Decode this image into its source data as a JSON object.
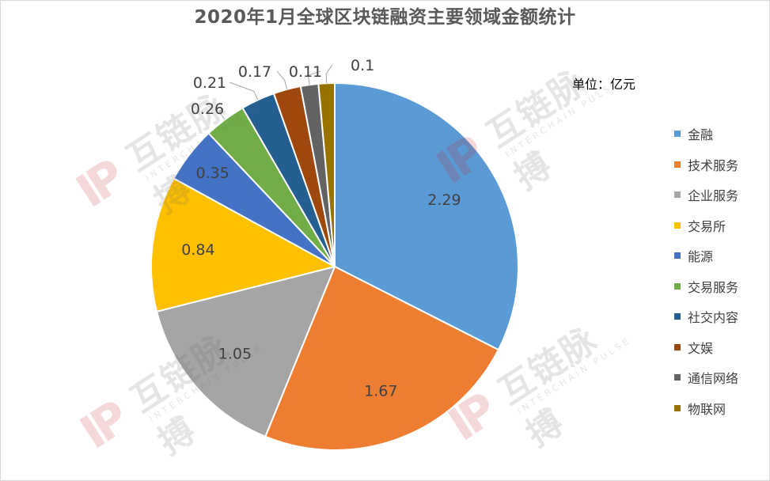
{
  "chart_data": {
    "type": "pie",
    "title": "2020年1月全球区块链融资主要领域金额统计",
    "unit_label": "单位：亿元",
    "categories": [
      "金融",
      "技术服务",
      "企业服务",
      "交易所",
      "能源",
      "交易服务",
      "社交内容",
      "文娱",
      "通信网络",
      "物联网"
    ],
    "values": [
      2.29,
      1.67,
      1.05,
      0.84,
      0.35,
      0.26,
      0.21,
      0.17,
      0.11,
      0.1
    ],
    "value_labels": [
      "2.29",
      "1.67",
      "1.05",
      "0.84",
      "0.35",
      "0.26",
      "0.21",
      "0.17",
      "0.11",
      "0.1"
    ],
    "colors": [
      "#5b9bd5",
      "#ed7d31",
      "#a5a5a5",
      "#ffc000",
      "#4472c4",
      "#70ad47",
      "#255e91",
      "#9e480e",
      "#636363",
      "#997300"
    ],
    "start_angle_deg": 0,
    "direction": "clockwise",
    "legend_position": "right"
  },
  "watermark": {
    "text": "互链脉搏",
    "subtext": "INTERCHAIN PULSE"
  }
}
